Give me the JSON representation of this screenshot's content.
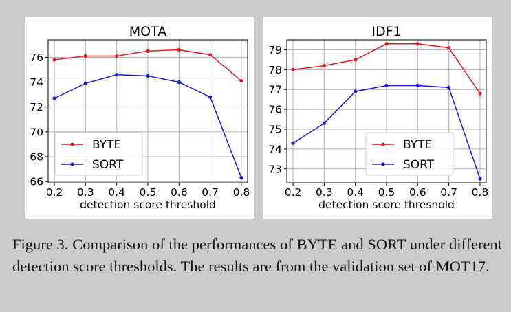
{
  "chart_data": [
    {
      "type": "line",
      "title": "MOTA",
      "xlabel": "detection score threshold",
      "ylabel": "",
      "x": [
        0.2,
        0.3,
        0.4,
        0.5,
        0.6,
        0.7,
        0.8
      ],
      "x_tick_labels": [
        "0.2",
        "0.3",
        "0.4",
        "0.5",
        "0.6",
        "0.7",
        "0.8"
      ],
      "xlim": [
        0.18,
        0.82
      ],
      "ylim": [
        65.9,
        77.4
      ],
      "y_ticks": [
        66,
        68,
        70,
        72,
        74,
        76
      ],
      "y_tick_labels": [
        "66",
        "68",
        "70",
        "72",
        "74",
        "76"
      ],
      "grid": true,
      "legend": "lower-left",
      "series": [
        {
          "name": "BYTE",
          "color": "#e8161b",
          "values": [
            75.8,
            76.1,
            76.1,
            76.5,
            76.6,
            76.2,
            74.1
          ]
        },
        {
          "name": "SORT",
          "color": "#1818e0",
          "values": [
            72.7,
            73.9,
            74.6,
            74.5,
            74.0,
            72.8,
            66.3
          ]
        }
      ]
    },
    {
      "type": "line",
      "title": "IDF1",
      "xlabel": "detection score threshold",
      "ylabel": "",
      "x": [
        0.2,
        0.3,
        0.4,
        0.5,
        0.6,
        0.7,
        0.8
      ],
      "x_tick_labels": [
        "0.2",
        "0.3",
        "0.4",
        "0.5",
        "0.6",
        "0.7",
        "0.8"
      ],
      "xlim": [
        0.18,
        0.82
      ],
      "ylim": [
        72.3,
        79.5
      ],
      "y_ticks": [
        73,
        74,
        75,
        76,
        77,
        78,
        79
      ],
      "y_tick_labels": [
        "73",
        "74",
        "75",
        "76",
        "77",
        "78",
        "79"
      ],
      "grid": true,
      "legend": "lower-center",
      "series": [
        {
          "name": "BYTE",
          "color": "#e8161b",
          "values": [
            78.0,
            78.2,
            78.5,
            79.3,
            79.3,
            79.1,
            76.8
          ]
        },
        {
          "name": "SORT",
          "color": "#1818e0",
          "values": [
            74.3,
            75.3,
            76.9,
            77.2,
            77.2,
            77.1,
            72.5
          ]
        }
      ]
    }
  ],
  "caption": "Figure 3. Comparison of the performances of BYTE and SORT under different detection score thresholds. The results are from the validation set of MOT17."
}
